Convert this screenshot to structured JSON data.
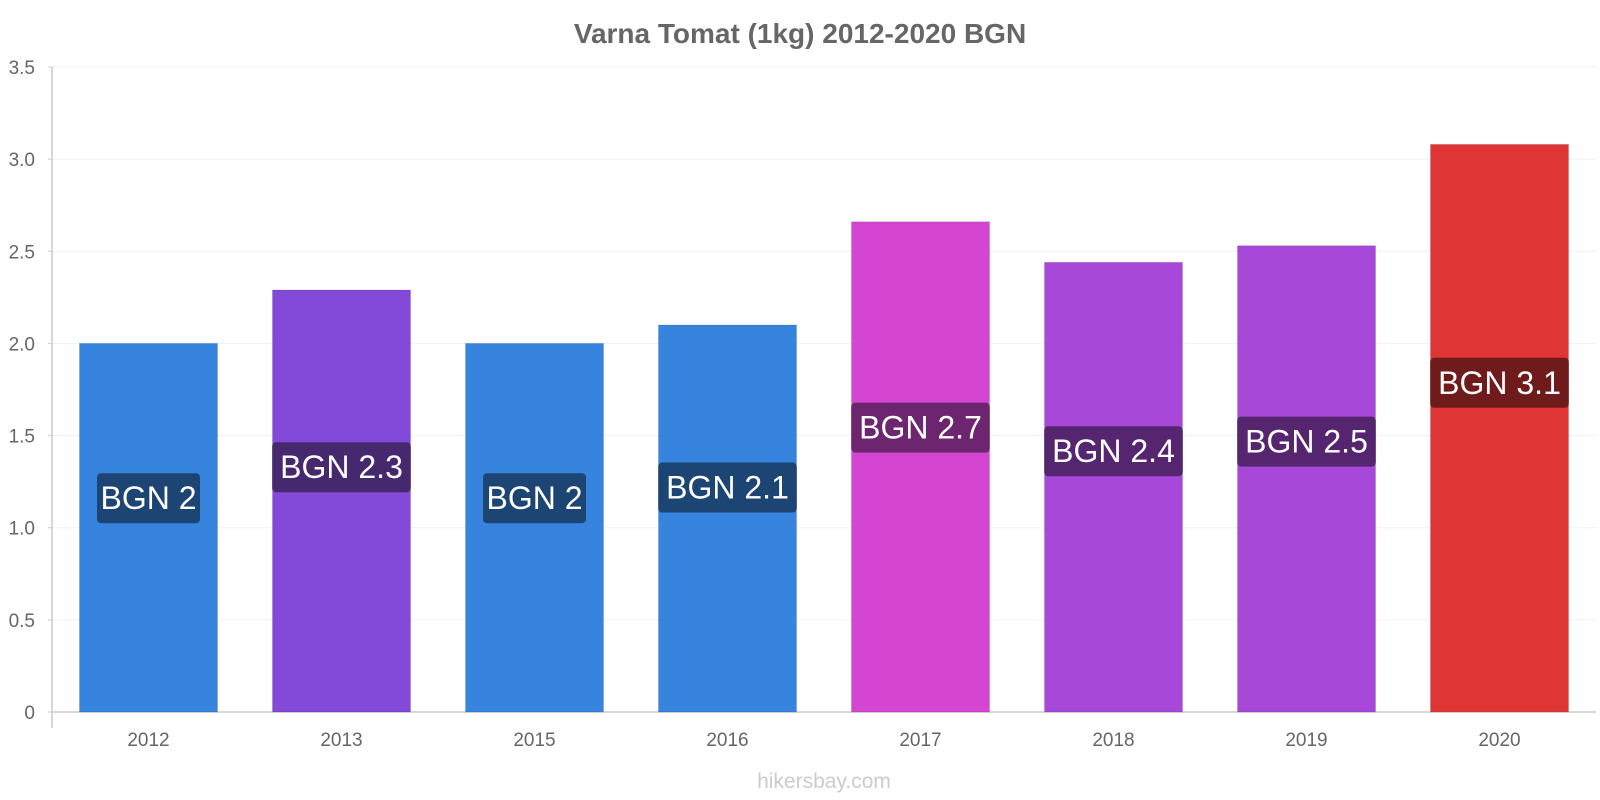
{
  "source": "hikersbay.com",
  "chart_data": {
    "type": "bar",
    "title": "Varna Tomat (1kg) 2012-2020 BGN",
    "xlabel": "",
    "ylabel": "",
    "ylim": [
      0,
      3.5
    ],
    "yticks": [
      {
        "value": 0,
        "label": "0"
      },
      {
        "value": 0.5,
        "label": "0.5"
      },
      {
        "value": 1,
        "label": "1.0"
      },
      {
        "value": 1.5,
        "label": "1.5"
      },
      {
        "value": 2,
        "label": "2.0"
      },
      {
        "value": 2.5,
        "label": "2.5"
      },
      {
        "value": 3,
        "label": "3.0"
      },
      {
        "value": 3.5,
        "label": "3.5"
      }
    ],
    "categories": [
      "2012",
      "2013",
      "2015",
      "2016",
      "2017",
      "2018",
      "2019",
      "2020"
    ],
    "values": [
      2.0,
      2.29,
      2.0,
      2.1,
      2.66,
      2.44,
      2.53,
      3.08
    ],
    "data_labels": [
      "BGN 2",
      "BGN 2.3",
      "BGN 2",
      "BGN 2.1",
      "BGN 2.7",
      "BGN 2.4",
      "BGN 2.5",
      "BGN 3.1"
    ],
    "bar_colors": [
      "#3784de",
      "#8349d8",
      "#3784de",
      "#3784de",
      "#d446d2",
      "#a848d8",
      "#a848d8",
      "#e03535"
    ],
    "label_colors": [
      "#1d4573",
      "#46286e",
      "#1d4573",
      "#1d4573",
      "#6d2570",
      "#55256f",
      "#55256f",
      "#701b1b"
    ]
  }
}
